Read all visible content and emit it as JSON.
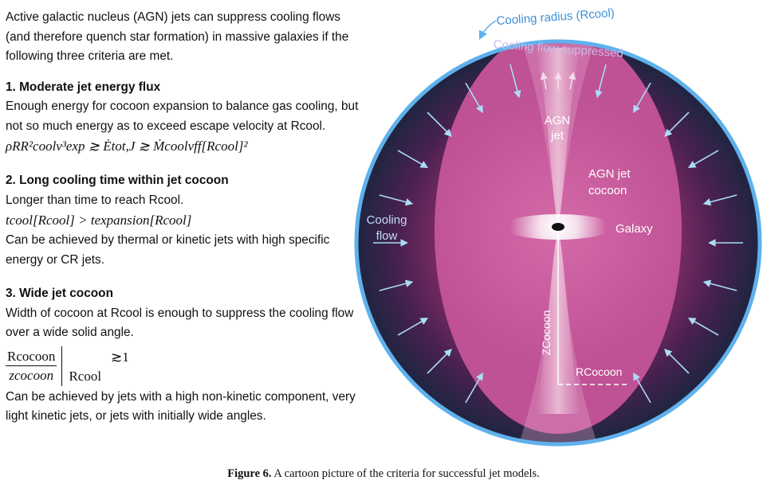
{
  "text": {
    "intro": "Active galactic nucleus (AGN) jets can suppress cooling flows (and therefore quench star formation) in massive galaxies if the following three criteria are met.",
    "c1_heading": "1. Moderate jet energy flux",
    "c1_body": "Enough energy for cocoon expansion to balance gas cooling, but not so much energy as to exceed escape velocity at Rcool.",
    "c1_math": "ρRR²coolv³exp ≳ Ėtot,J ≳ Ṁcoolvff[Rcool]²",
    "c2_heading": "2. Long cooling time within jet cocoon",
    "c2_body": "Longer than time to reach Rcool.",
    "c2_math": "tcool[Rcool] > texpansion[Rcool]",
    "c2_note": "Can be achieved by thermal or kinetic jets with high specific energy or CR jets.",
    "c3_heading": "3. Wide jet cocoon",
    "c3_body": "Width of cocoon at Rcool is enough to suppress the cooling flow over a wide solid angle.",
    "c3_frac_num": "Rcocoon",
    "c3_frac_den": "zcocoon",
    "c3_frac_eval": "Rcool",
    "c3_frac_rel": "≳1",
    "c3_note": "Can be achieved by jets with a high non-kinetic component, very light kinetic jets, or jets with initially wide angles."
  },
  "diagram": {
    "label_cooling_radius": "Cooling radius (Rcool)",
    "label_suppressed": "Cooling flow suppressed",
    "label_agn_jet": "AGN jet",
    "label_cocoon": "AGN jet cocoon",
    "label_cooling_flow": "Cooling flow",
    "label_galaxy": "Galaxy",
    "label_zcocoon": "ZCocoon",
    "label_rcocoon": "RCocoon",
    "colors": {
      "rim": "#5fb1ec",
      "cocoon": "#c4579a",
      "outer_edge": "#1c2540",
      "arrow": "#a9dcf7"
    }
  },
  "caption": {
    "label": "Figure 6.",
    "text": "A cartoon picture of the criteria for successful jet models."
  }
}
